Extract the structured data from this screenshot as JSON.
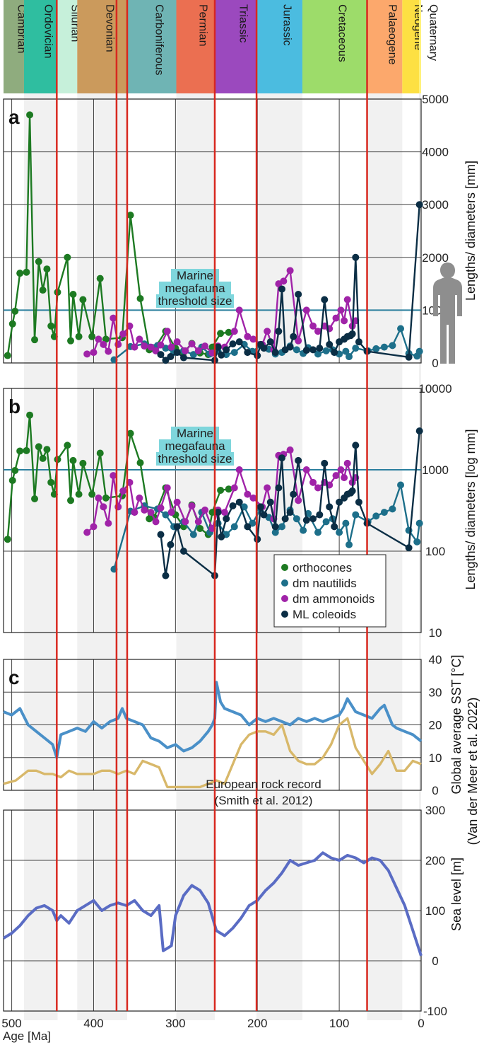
{
  "chart_data": {
    "type": "line",
    "x_axis": {
      "label": "Age [Ma]",
      "range": [
        0,
        510
      ],
      "reversed": true,
      "ticks": [
        500,
        400,
        300,
        200,
        100,
        0
      ]
    },
    "periods": [
      {
        "name": "Cambrian",
        "from": 510,
        "to": 485,
        "color": "#8fac7e"
      },
      {
        "name": "Ordovician",
        "from": 485,
        "to": 444,
        "color": "#2fbea0"
      },
      {
        "name": "Silurian",
        "from": 444,
        "to": 420,
        "color": "#c6f0da"
      },
      {
        "name": "Devonian",
        "from": 420,
        "to": 359,
        "color": "#cb9a5c"
      },
      {
        "name": "Carboniferous",
        "from": 359,
        "to": 299,
        "color": "#6fb4b4"
      },
      {
        "name": "Permian",
        "from": 299,
        "to": 252,
        "color": "#eb6f51"
      },
      {
        "name": "Triassic",
        "from": 252,
        "to": 201,
        "color": "#9b49be"
      },
      {
        "name": "Jurassic",
        "from": 201,
        "to": 145,
        "color": "#4bbce0"
      },
      {
        "name": "Cretaceous",
        "from": 145,
        "to": 66,
        "color": "#9ddc6a"
      },
      {
        "name": "Palaeogene",
        "from": 66,
        "to": 23,
        "color": "#fca86c"
      },
      {
        "name": "Neogene",
        "from": 23,
        "to": 2.6,
        "color": "#fde043"
      },
      {
        "name": "Quaternary",
        "from": 2.6,
        "to": 0,
        "color": "#fff27c"
      }
    ],
    "extinction_lines_ma": [
      445,
      372,
      359,
      252,
      201,
      66
    ],
    "panels": [
      {
        "id": "a",
        "letter": "a",
        "scale": "linear",
        "ylabel": "Lengths/ diameters [mm]",
        "ylim": [
          0,
          5000
        ],
        "yticks": [
          0,
          1000,
          2000,
          3000,
          4000,
          5000
        ],
        "threshold": 1000,
        "annotation": [
          "Marine",
          "megafauna",
          "threshold size"
        ]
      },
      {
        "id": "b",
        "letter": "b",
        "scale": "log",
        "ylabel": "Lengths/ diameters [log mm]",
        "ylim": [
          10,
          10000
        ],
        "yticks": [
          10,
          100,
          1000,
          10000
        ],
        "threshold": 1000,
        "annotation": [
          "Marine",
          "megafauna",
          "threshold size"
        ]
      },
      {
        "id": "c",
        "letter": "c",
        "ylabel": [
          "Global average SST [°C]",
          "(Van der Meer et al. 2022)"
        ],
        "ylim": [
          0,
          40
        ],
        "yticks": [
          0,
          10,
          20,
          30,
          40
        ],
        "annotation": [
          "European rock record",
          "(Smith et al. 2012)"
        ]
      },
      {
        "id": "d",
        "letter": "",
        "ylabel": "Sea level [m]",
        "ylim": [
          -100,
          300
        ],
        "yticks": [
          -100,
          0,
          100,
          200,
          300
        ]
      }
    ],
    "legend": [
      "orthocones",
      "dm nautilids",
      "dm ammonoids",
      "ML coleoids"
    ],
    "series": [
      {
        "name": "orthocones",
        "color": "#1d7a22",
        "x": [
          505,
          499,
          496,
          490,
          482,
          478,
          472,
          467,
          462,
          457,
          452,
          448,
          444,
          432,
          428,
          425,
          418,
          413,
          402,
          392,
          385,
          365,
          355,
          343,
          332,
          326,
          312,
          300,
          290,
          280,
          270,
          260,
          255,
          245,
          235
        ],
        "y": [
          140,
          740,
          980,
          1700,
          1720,
          4700,
          440,
          1920,
          1380,
          1780,
          700,
          500,
          1340,
          2000,
          420,
          1300,
          500,
          1200,
          500,
          1600,
          450,
          480,
          2800,
          1220,
          250,
          260,
          600,
          280,
          200,
          370,
          190,
          160,
          300,
          560,
          580
        ]
      },
      {
        "name": "dm nautilids",
        "color": "#1d6f8a",
        "x": [
          375,
          355,
          338,
          322,
          312,
          302,
          290,
          278,
          268,
          258,
          248,
          238,
          228,
          216,
          206,
          196,
          186,
          178,
          170,
          160,
          152,
          144,
          138,
          126,
          116,
          108,
          100,
          92,
          88,
          80,
          65,
          55,
          45,
          35,
          25,
          15,
          5,
          2
        ],
        "y": [
          60,
          310,
          360,
          330,
          280,
          200,
          230,
          160,
          300,
          170,
          220,
          160,
          200,
          350,
          220,
          330,
          260,
          170,
          200,
          320,
          250,
          180,
          290,
          170,
          230,
          250,
          170,
          220,
          120,
          280,
          230,
          270,
          300,
          330,
          650,
          180,
          130,
          220
        ]
      },
      {
        "name": "dm ammonoids",
        "color": "#a023a8",
        "x": [
          408,
          400,
          394,
          388,
          382,
          376,
          370,
          364,
          356,
          350,
          344,
          338,
          330,
          324,
          318,
          310,
          305,
          298,
          288,
          280,
          272,
          264,
          255,
          248,
          240,
          228,
          222,
          212,
          205,
          194,
          188,
          180,
          174,
          168,
          160,
          150,
          140,
          132,
          126,
          118,
          112,
          104,
          98,
          94,
          90,
          84,
          80
        ],
        "y": [
          170,
          200,
          450,
          350,
          220,
          850,
          350,
          550,
          700,
          300,
          450,
          320,
          300,
          230,
          340,
          600,
          300,
          400,
          230,
          360,
          230,
          320,
          190,
          320,
          300,
          600,
          1000,
          500,
          450,
          350,
          600,
          250,
          1500,
          1550,
          1750,
          420,
          1000,
          700,
          600,
          700,
          650,
          850,
          1000,
          800,
          1200,
          700,
          800
        ]
      },
      {
        "name": "ML coleoids",
        "color": "#0b2e45",
        "x": [
          318,
          312,
          306,
          298,
          290,
          252,
          248,
          244,
          238,
          230,
          222,
          212,
          200,
          196,
          192,
          184,
          178,
          174,
          170,
          166,
          160,
          156,
          150,
          140,
          132,
          124,
          118,
          112,
          106,
          100,
          94,
          90,
          86,
          84,
          80,
          76,
          66,
          15,
          2
        ],
        "y": [
          160,
          50,
          120,
          200,
          100,
          50,
          300,
          150,
          250,
          360,
          400,
          200,
          140,
          350,
          280,
          400,
          200,
          600,
          1400,
          250,
          300,
          500,
          1300,
          240,
          250,
          280,
          1200,
          350,
          200,
          400,
          450,
          500,
          520,
          550,
          2000,
          400,
          220,
          110,
          3000
        ]
      },
      {
        "name": "Global average SST",
        "color": "#4a90c8",
        "x": [
          510,
          500,
          495,
          490,
          480,
          470,
          460,
          450,
          445,
          440,
          430,
          420,
          410,
          400,
          390,
          380,
          370,
          365,
          360,
          350,
          340,
          330,
          320,
          310,
          300,
          290,
          280,
          270,
          260,
          255,
          252,
          250,
          245,
          240,
          230,
          220,
          210,
          200,
          190,
          180,
          170,
          160,
          150,
          140,
          130,
          120,
          110,
          100,
          95,
          90,
          85,
          80,
          70,
          60,
          50,
          45,
          40,
          35,
          30,
          20,
          10,
          5,
          0
        ],
        "y": [
          24,
          23,
          24,
          25,
          20,
          18,
          16,
          14,
          10,
          17,
          18,
          19,
          18,
          21,
          19,
          21,
          22,
          25,
          22,
          21,
          20,
          16,
          15,
          13,
          14,
          12,
          13,
          15,
          18,
          20,
          22,
          33,
          27,
          25,
          24,
          23,
          20,
          22,
          21,
          22,
          21,
          20,
          22,
          21,
          22,
          21,
          22,
          23,
          25,
          28,
          26,
          24,
          23,
          22,
          25,
          26,
          23,
          20,
          19,
          18,
          17,
          16,
          15
        ]
      },
      {
        "name": "European rock record",
        "color": "#d8b86a",
        "x": [
          510,
          495,
          480,
          470,
          460,
          450,
          440,
          430,
          420,
          410,
          400,
          390,
          380,
          370,
          360,
          350,
          340,
          330,
          320,
          310,
          300,
          290,
          280,
          270,
          260,
          250,
          240,
          230,
          220,
          210,
          200,
          190,
          180,
          170,
          160,
          150,
          140,
          130,
          120,
          110,
          100,
          90,
          80,
          70,
          60,
          50,
          40,
          30,
          20,
          10,
          0
        ],
        "y": [
          2,
          3,
          6,
          6,
          5,
          5,
          4,
          6,
          5,
          5,
          5,
          6,
          6,
          5,
          6,
          5,
          9,
          8,
          7,
          1,
          1,
          1,
          1,
          1,
          2,
          3,
          2,
          8,
          14,
          17,
          18,
          18,
          17,
          20,
          12,
          9,
          8,
          8,
          10,
          14,
          20,
          22,
          13,
          9,
          5,
          8,
          12,
          6,
          6,
          9,
          8
        ]
      },
      {
        "name": "Sea level",
        "color": "#5a6cc4",
        "x": [
          510,
          500,
          490,
          480,
          470,
          460,
          450,
          445,
          440,
          430,
          420,
          410,
          400,
          390,
          380,
          370,
          360,
          350,
          340,
          330,
          320,
          315,
          310,
          305,
          300,
          290,
          280,
          270,
          260,
          250,
          240,
          230,
          220,
          210,
          200,
          190,
          180,
          170,
          160,
          150,
          140,
          130,
          120,
          110,
          100,
          90,
          80,
          70,
          60,
          50,
          40,
          30,
          20,
          10,
          0
        ],
        "y": [
          45,
          55,
          70,
          90,
          105,
          110,
          100,
          80,
          90,
          75,
          100,
          110,
          120,
          100,
          110,
          115,
          110,
          120,
          100,
          90,
          110,
          20,
          25,
          30,
          90,
          130,
          150,
          140,
          115,
          60,
          50,
          65,
          85,
          110,
          120,
          140,
          155,
          175,
          200,
          190,
          195,
          200,
          215,
          205,
          200,
          210,
          205,
          195,
          205,
          200,
          180,
          145,
          110,
          60,
          10
        ]
      }
    ]
  }
}
